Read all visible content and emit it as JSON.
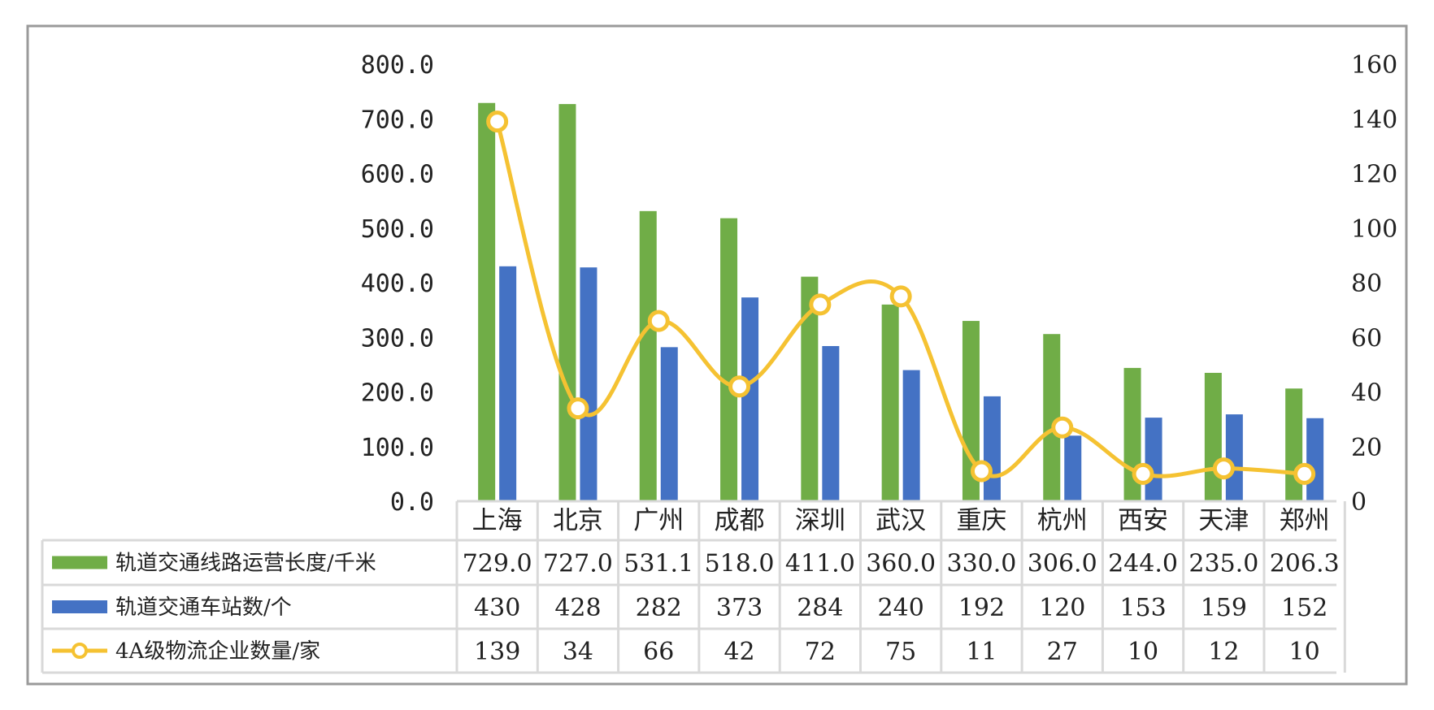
{
  "chart_data": {
    "type": "bar",
    "categories": [
      "上海",
      "北京",
      "广州",
      "成都",
      "深圳",
      "武汉",
      "重庆",
      "杭州",
      "西安",
      "天津",
      "郑州"
    ],
    "series": [
      {
        "name": "轨道交通线路运营长度/千米",
        "kind": "bar",
        "axis": "left",
        "color": "#70ad47",
        "values": [
          729.0,
          727.0,
          531.1,
          518.0,
          411.0,
          360.0,
          330.0,
          306.0,
          244.0,
          235.0,
          206.3
        ],
        "display": [
          "729.0",
          "727.0",
          "531.1",
          "518.0",
          "411.0",
          "360.0",
          "330.0",
          "306.0",
          "244.0",
          "235.0",
          "206.3"
        ]
      },
      {
        "name": "轨道交通车站数/个",
        "kind": "bar",
        "axis": "left",
        "color": "#4472c4",
        "values": [
          430,
          428,
          282,
          373,
          284,
          240,
          192,
          120,
          153,
          159,
          152
        ],
        "display": [
          "430",
          "428",
          "282",
          "373",
          "284",
          "240",
          "192",
          "120",
          "153",
          "159",
          "152"
        ]
      },
      {
        "name": "4A级物流企业数量/家",
        "kind": "line",
        "axis": "right",
        "color": "#f5c232",
        "values": [
          139,
          34,
          66,
          42,
          72,
          75,
          11,
          27,
          10,
          12,
          10
        ],
        "display": [
          "139",
          "34",
          "66",
          "42",
          "72",
          "75",
          "11",
          "27",
          "10",
          "12",
          "10"
        ]
      }
    ],
    "y_left": {
      "ylim": [
        0,
        800
      ],
      "ticks": [
        0,
        100,
        200,
        300,
        400,
        500,
        600,
        700,
        800
      ],
      "tick_labels": [
        "0.0",
        "100.0",
        "200.0",
        "300.0",
        "400.0",
        "500.0",
        "600.0",
        "700.0",
        "800.0"
      ]
    },
    "y_right": {
      "ylim": [
        0,
        160
      ],
      "ticks": [
        0,
        20,
        40,
        60,
        80,
        100,
        120,
        140,
        160
      ],
      "tick_labels": [
        "0",
        "20",
        "40",
        "60",
        "80",
        "100",
        "120",
        "140",
        "160"
      ]
    },
    "data_table": true,
    "title": "",
    "xlabel": "",
    "ylabel": ""
  }
}
